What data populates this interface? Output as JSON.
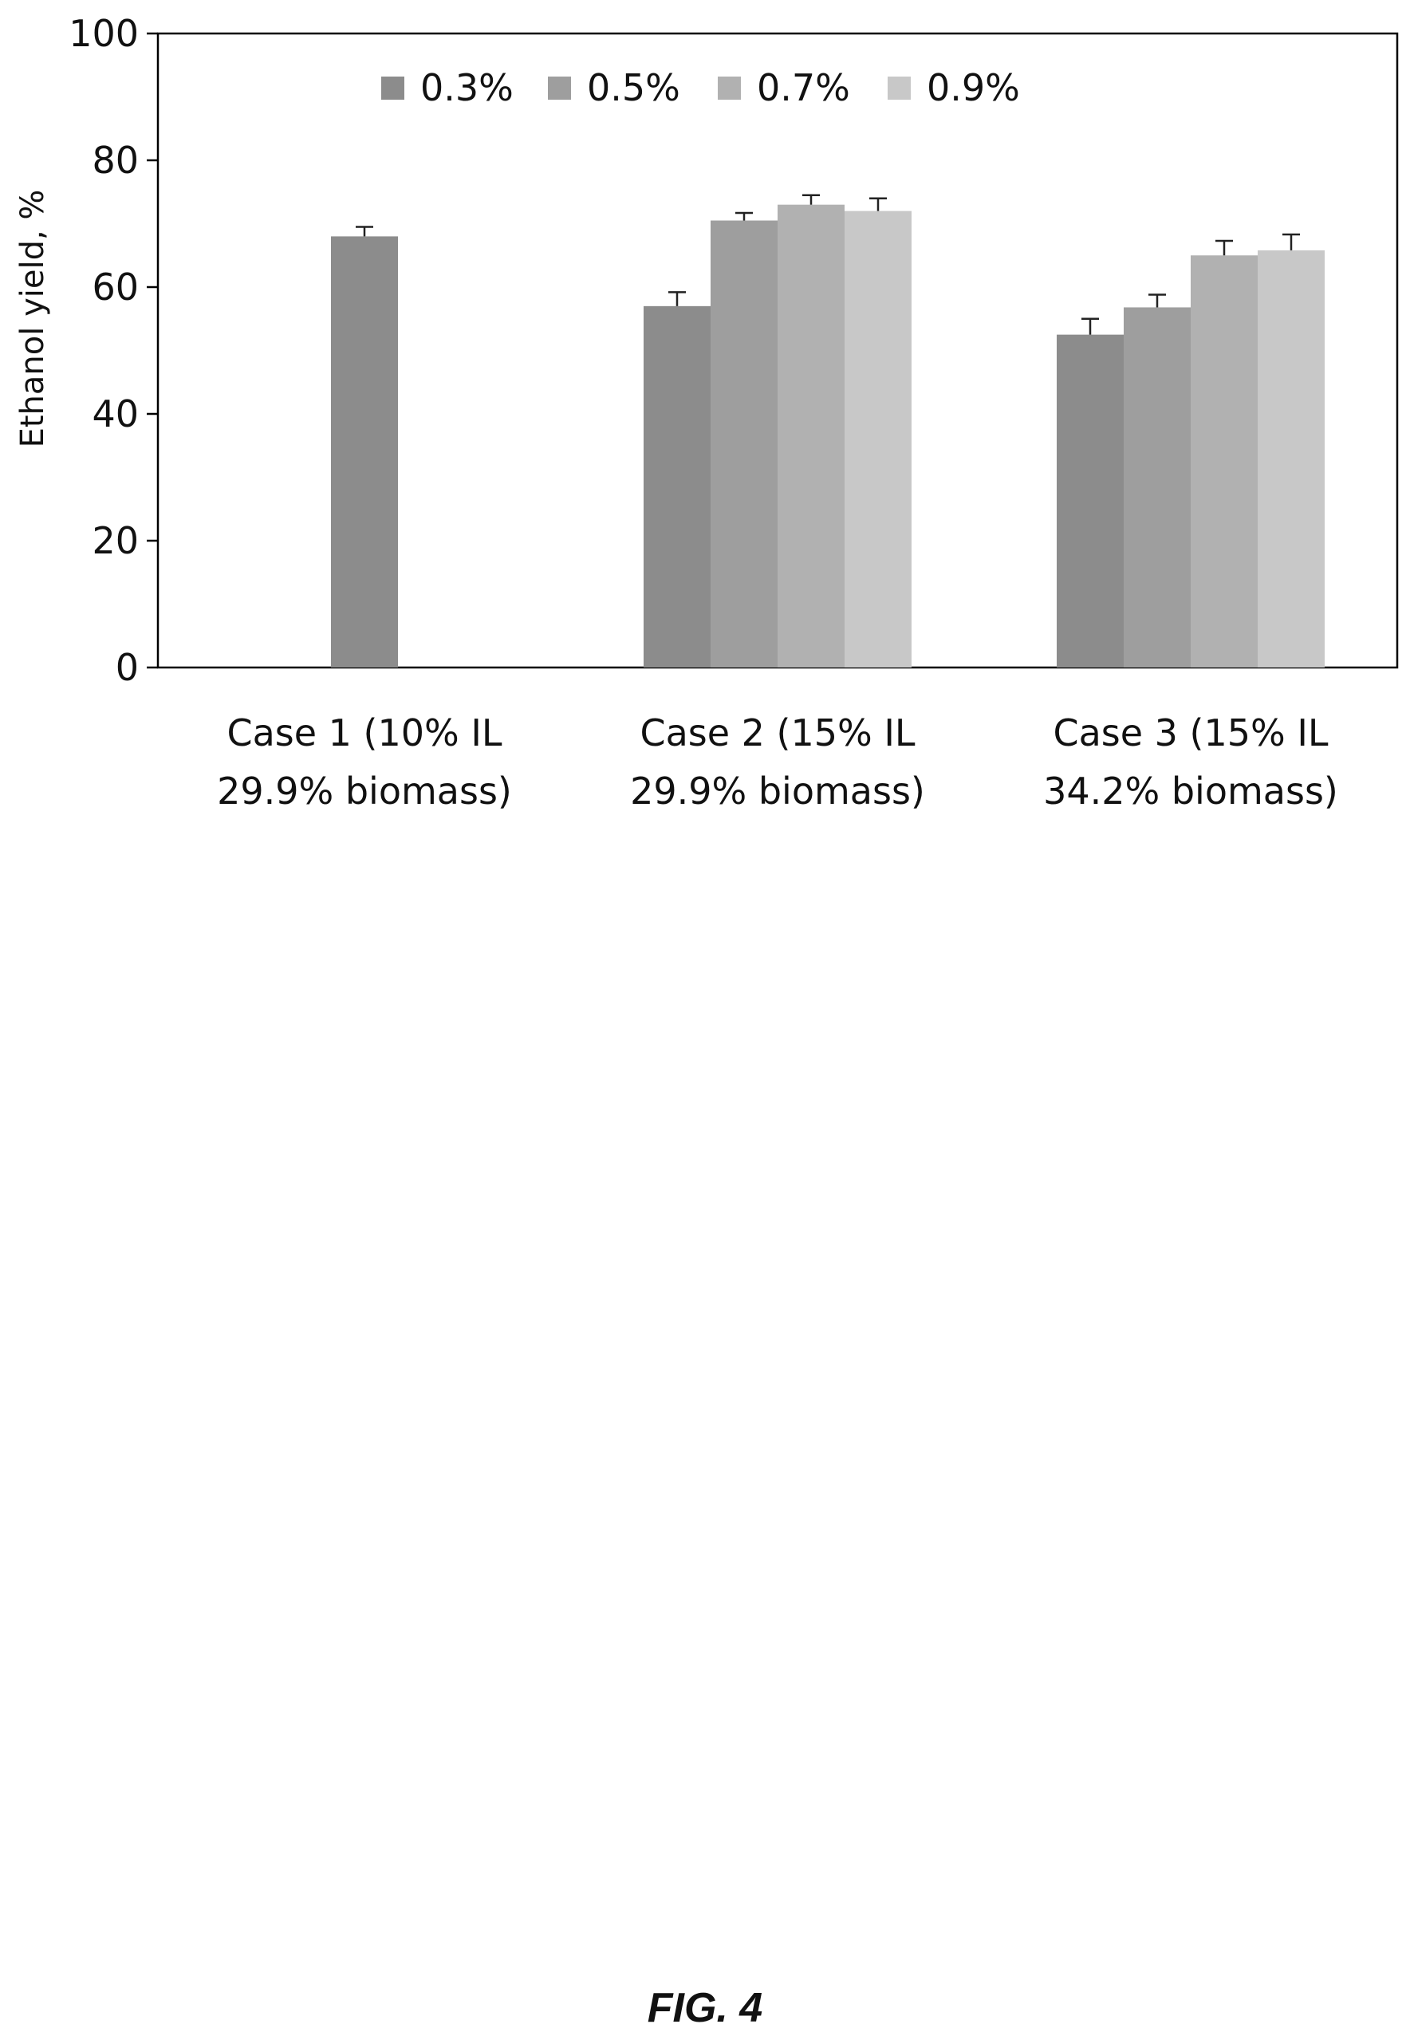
{
  "chart_data": {
    "type": "bar",
    "categories": [
      [
        "Case 1 (10% IL",
        "29.9% biomass)"
      ],
      [
        "Case 2 (15% IL",
        "29.9% biomass)"
      ],
      [
        "Case 3 (15% IL",
        "34.2% biomass)"
      ]
    ],
    "series": [
      {
        "name": "0.3%",
        "color": "#8c8c8c",
        "values": [
          68,
          57,
          52.5
        ],
        "errors": [
          1.5,
          2.2,
          2.5
        ]
      },
      {
        "name": "0.5%",
        "color": "#9e9e9e",
        "values": [
          null,
          70.5,
          56.8
        ],
        "errors": [
          null,
          1.2,
          2.0
        ]
      },
      {
        "name": "0.7%",
        "color": "#b1b1b1",
        "values": [
          null,
          73,
          65
        ],
        "errors": [
          null,
          1.5,
          2.3
        ]
      },
      {
        "name": "0.9%",
        "color": "#c8c8c8",
        "values": [
          null,
          72,
          65.8
        ],
        "errors": [
          null,
          2.0,
          2.5
        ]
      }
    ],
    "ylabel": "Ethanol yield, %",
    "ylim": [
      0,
      100
    ],
    "yticks": [
      "0",
      "20",
      "40",
      "60",
      "80",
      "100"
    ],
    "legend": "top",
    "grid": false
  },
  "caption": "FIG. 4"
}
